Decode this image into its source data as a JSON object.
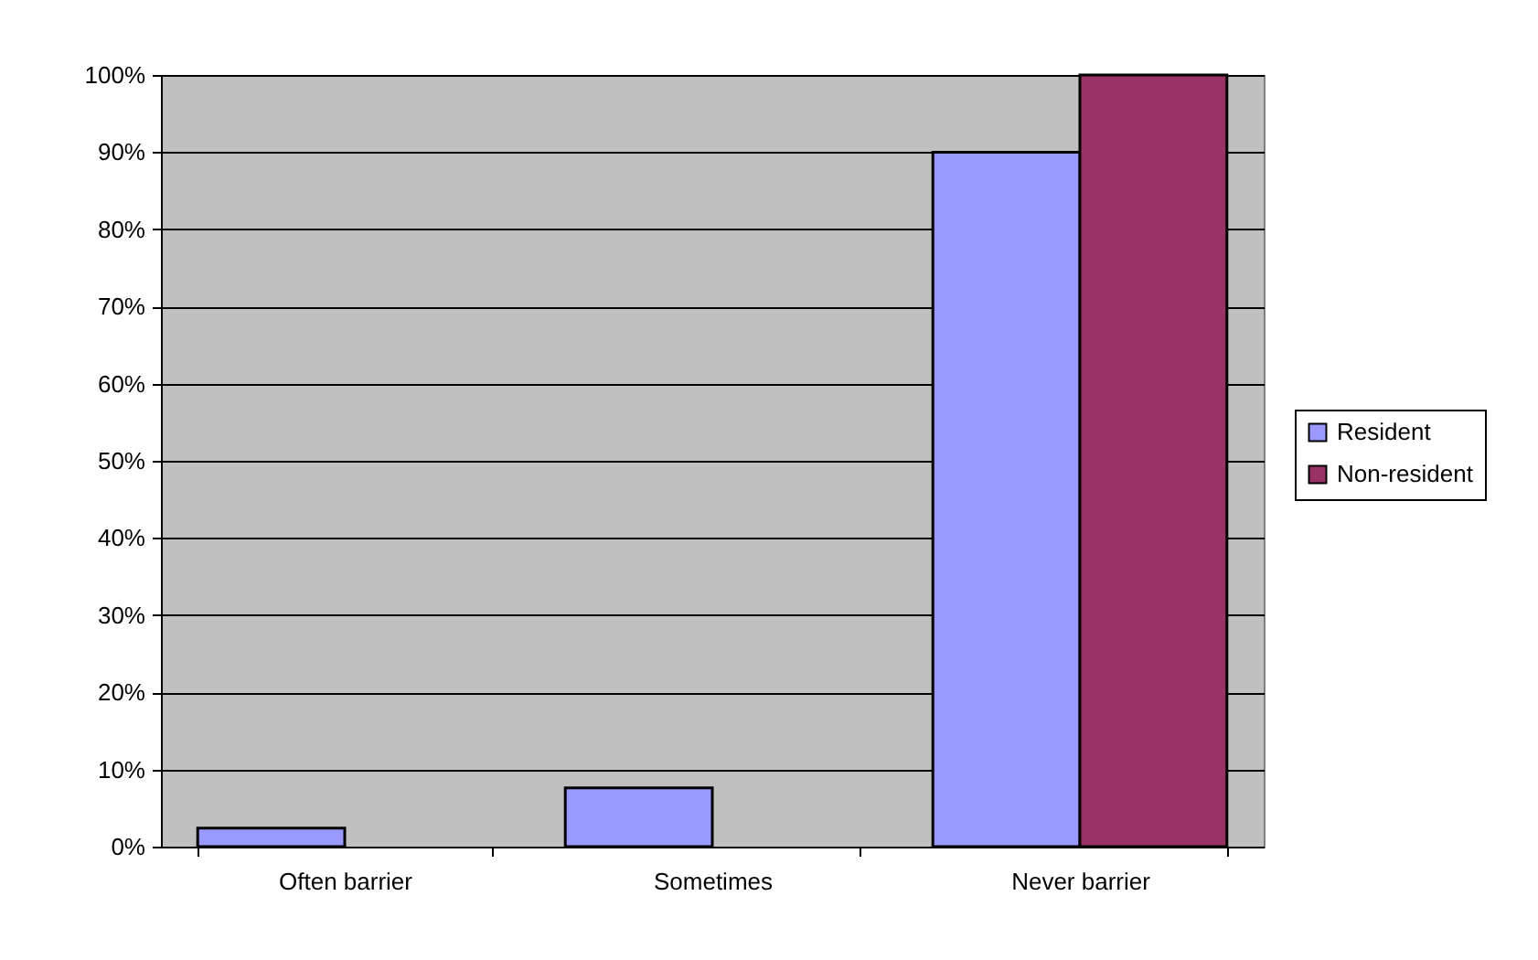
{
  "chart_data": {
    "type": "bar",
    "categories": [
      "Often barrier",
      "Sometimes",
      "Never barrier"
    ],
    "series": [
      {
        "name": "Resident",
        "color": "#9999ff",
        "values": [
          2.4,
          7.6,
          90
        ]
      },
      {
        "name": "Non-resident",
        "color": "#993366",
        "values": [
          null,
          null,
          100
        ]
      }
    ],
    "ylim": [
      0,
      100
    ],
    "yticks": [
      {
        "value": 0,
        "label": "0%"
      },
      {
        "value": 10,
        "label": "10%"
      },
      {
        "value": 20,
        "label": "20%"
      },
      {
        "value": 30,
        "label": "30%"
      },
      {
        "value": 40,
        "label": "40%"
      },
      {
        "value": 50,
        "label": "50%"
      },
      {
        "value": 60,
        "label": "60%"
      },
      {
        "value": 70,
        "label": "70%"
      },
      {
        "value": 80,
        "label": "80%"
      },
      {
        "value": 90,
        "label": "90%"
      },
      {
        "value": 100,
        "label": "100%"
      }
    ],
    "grid": "y",
    "legend": "right"
  }
}
